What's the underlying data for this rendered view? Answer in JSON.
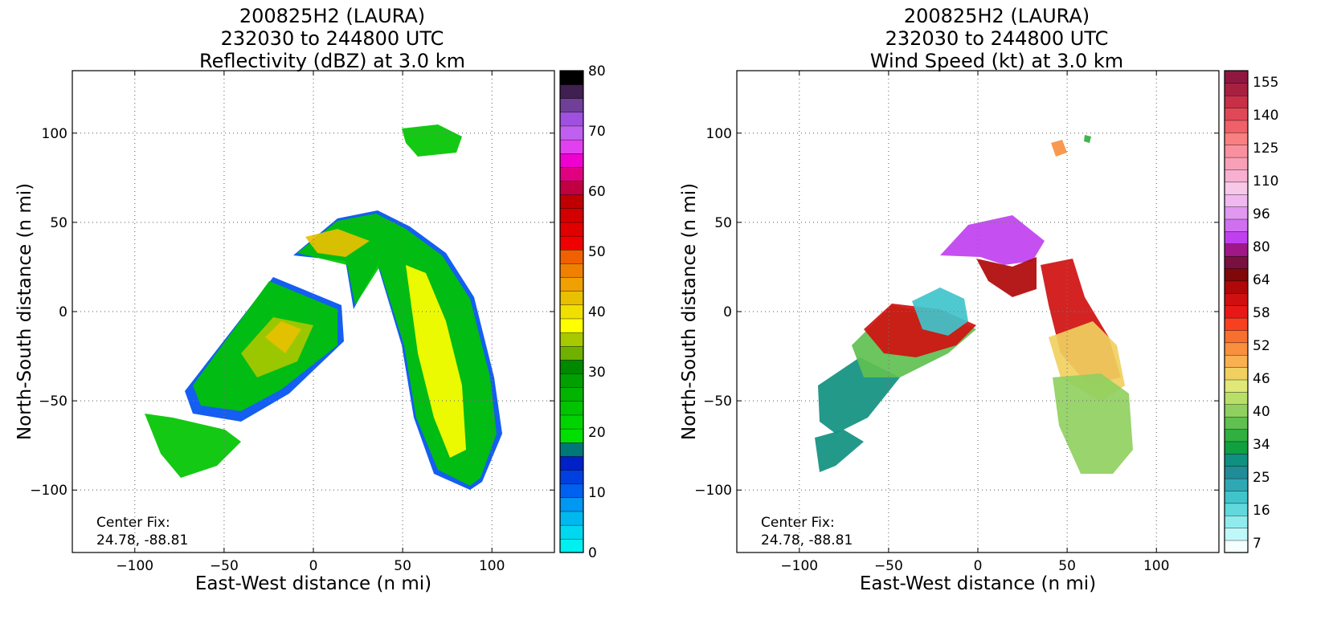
{
  "chart_data": [
    {
      "type": "heatmap",
      "title": [
        "200825H2 (LAURA)",
        "232030 to 244800 UTC",
        "Reflectivity (dBZ) at 3.0 km"
      ],
      "xlabel": "East-West distance (n mi)",
      "ylabel": "North-South distance (n mi)",
      "xlim": [
        -135,
        135
      ],
      "ylim": [
        -135,
        135
      ],
      "xticks": [
        -100,
        -50,
        0,
        50,
        100
      ],
      "yticks": [
        -100,
        -50,
        0,
        50,
        100
      ],
      "grid": "dotted",
      "annotation": [
        "Center Fix:",
        "24.78, -88.81"
      ],
      "colorbar": {
        "min": 0,
        "max": 80,
        "ticks": [
          0,
          10,
          20,
          30,
          40,
          50,
          60,
          70,
          80
        ],
        "colors": [
          "#00f0f0",
          "#00d8f0",
          "#00b8f0",
          "#0098f0",
          "#0060f0",
          "#0040e0",
          "#0020c8",
          "#007878",
          "#00e000",
          "#00d400",
          "#00c400",
          "#00b400",
          "#00a000",
          "#008800",
          "#70b000",
          "#a8c800",
          "#ffff00",
          "#f0e000",
          "#e8c000",
          "#f0a000",
          "#f08000",
          "#f06000",
          "#f00000",
          "#e00000",
          "#d40000",
          "#c00000",
          "#c00040",
          "#e00080",
          "#f000d0",
          "#e040f0",
          "#c060f0",
          "#a050e0",
          "#704098",
          "#402050",
          "#000000"
        ]
      }
    },
    {
      "type": "heatmap",
      "title": [
        "200825H2 (LAURA)",
        "232030 to 244800 UTC",
        "Wind Speed (kt) at 3.0 km"
      ],
      "xlabel": "East-West distance (n mi)",
      "ylabel": "North-South distance (n mi)",
      "xlim": [
        -135,
        135
      ],
      "ylim": [
        -135,
        135
      ],
      "xticks": [
        -100,
        -50,
        0,
        50,
        100
      ],
      "yticks": [
        -100,
        -50,
        0,
        50,
        100
      ],
      "grid": "dotted",
      "annotation": [
        "Center Fix:",
        "24.78, -88.81"
      ],
      "colorbar": {
        "tick_labels": [
          "7",
          "16",
          "25",
          "34",
          "40",
          "46",
          "52",
          "58",
          "64",
          "80",
          "96",
          "110",
          "125",
          "140",
          "155"
        ],
        "colors": [
          "#f6ffff",
          "#bff8f8",
          "#90ecec",
          "#60d8dc",
          "#40c4cc",
          "#30a8b4",
          "#208c98",
          "#109080",
          "#10a040",
          "#30b040",
          "#60c050",
          "#90d060",
          "#b8e068",
          "#e0e878",
          "#f0d060",
          "#f8b050",
          "#f89040",
          "#f87030",
          "#f84020",
          "#e81818",
          "#d01010",
          "#b00808",
          "#800808",
          "#7a1040",
          "#a01888",
          "#c040f0",
          "#d070f0",
          "#e098f0",
          "#f0b8f0",
          "#f8c8e8",
          "#f8b0d0",
          "#f8a0b8",
          "#f890a0",
          "#f88080",
          "#f06068",
          "#e04858",
          "#c83048",
          "#a82040",
          "#901840"
        ]
      }
    }
  ]
}
